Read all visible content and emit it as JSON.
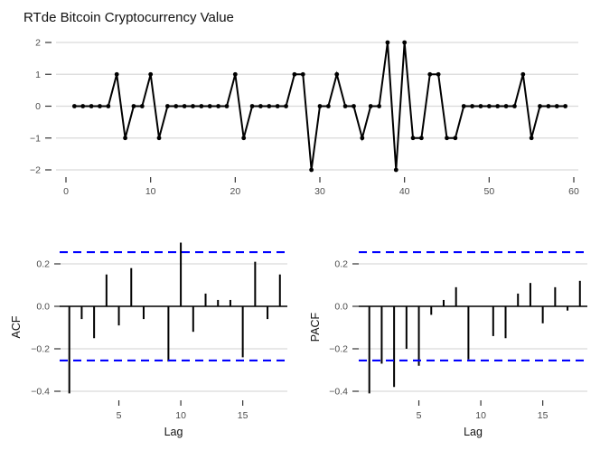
{
  "chart_data": [
    {
      "type": "line",
      "title": "RTde Bitcoin Cryptocurrency Value",
      "xlabel": "",
      "ylabel": "",
      "x": [
        1,
        2,
        3,
        4,
        5,
        6,
        7,
        8,
        9,
        10,
        11,
        12,
        13,
        14,
        15,
        16,
        17,
        18,
        19,
        20,
        21,
        22,
        23,
        24,
        25,
        26,
        27,
        28,
        29,
        30,
        31,
        32,
        33,
        34,
        35,
        36,
        37,
        38,
        39,
        40,
        41,
        42,
        43,
        44,
        45,
        46,
        47,
        48,
        49,
        50,
        51,
        52,
        53,
        54,
        55,
        56,
        57,
        58,
        59
      ],
      "values": [
        0,
        0,
        0,
        0,
        0,
        1,
        -1,
        0,
        0,
        1,
        -1,
        0,
        0,
        0,
        0,
        0,
        0,
        0,
        0,
        1,
        -1,
        0,
        0,
        0,
        0,
        0,
        1,
        1,
        -2,
        0,
        0,
        1,
        0,
        0,
        -1,
        0,
        0,
        2,
        -2,
        2,
        -1,
        -1,
        1,
        1,
        -1,
        -1,
        0,
        0,
        0,
        0,
        0,
        0,
        0,
        1,
        -1,
        0,
        0,
        0,
        0
      ],
      "xlim": [
        0,
        60
      ],
      "ylim": [
        -2,
        2
      ],
      "xticks": [
        "0",
        "10",
        "20",
        "30",
        "40",
        "50",
        "60"
      ],
      "yticks": [
        "−2",
        "−1",
        "0",
        "1",
        "2"
      ],
      "grid": true,
      "colors": {
        "line": "#000000",
        "grid": "#d9d9d9"
      }
    },
    {
      "type": "bar",
      "title": "",
      "xlabel": "Lag",
      "ylabel": "ACF",
      "lags": [
        1,
        2,
        3,
        4,
        5,
        6,
        7,
        8,
        9,
        10,
        11,
        12,
        13,
        14,
        15,
        16,
        17,
        18
      ],
      "values": [
        -0.41,
        -0.06,
        -0.15,
        0.15,
        -0.09,
        0.18,
        -0.06,
        0.0,
        -0.26,
        0.3,
        -0.12,
        0.06,
        0.03,
        0.03,
        -0.24,
        0.21,
        -0.06,
        0.15
      ],
      "confidence_limit": 0.255,
      "ylim": [
        -0.43,
        0.31
      ],
      "xticks": [
        "5",
        "10",
        "15"
      ],
      "yticks": [
        "−0.4",
        "−0.2",
        "0.0",
        "0.2"
      ],
      "grid": true,
      "colors": {
        "bars": "#000000",
        "ci": "#0000ff",
        "grid": "#d9d9d9"
      }
    },
    {
      "type": "bar",
      "title": "",
      "xlabel": "Lag",
      "ylabel": "PACF",
      "lags": [
        1,
        2,
        3,
        4,
        5,
        6,
        7,
        8,
        9,
        10,
        11,
        12,
        13,
        14,
        15,
        16,
        17,
        18
      ],
      "values": [
        -0.41,
        -0.27,
        -0.38,
        -0.2,
        -0.28,
        -0.04,
        0.03,
        0.09,
        -0.25,
        0.0,
        -0.14,
        -0.15,
        0.06,
        0.11,
        -0.08,
        0.09,
        -0.02,
        0.12
      ],
      "confidence_limit": 0.255,
      "ylim": [
        -0.43,
        0.31
      ],
      "xticks": [
        "5",
        "10",
        "15"
      ],
      "yticks": [
        "−0.4",
        "−0.2",
        "0.0",
        "0.2"
      ],
      "grid": true,
      "colors": {
        "bars": "#000000",
        "ci": "#0000ff",
        "grid": "#d9d9d9"
      }
    }
  ]
}
